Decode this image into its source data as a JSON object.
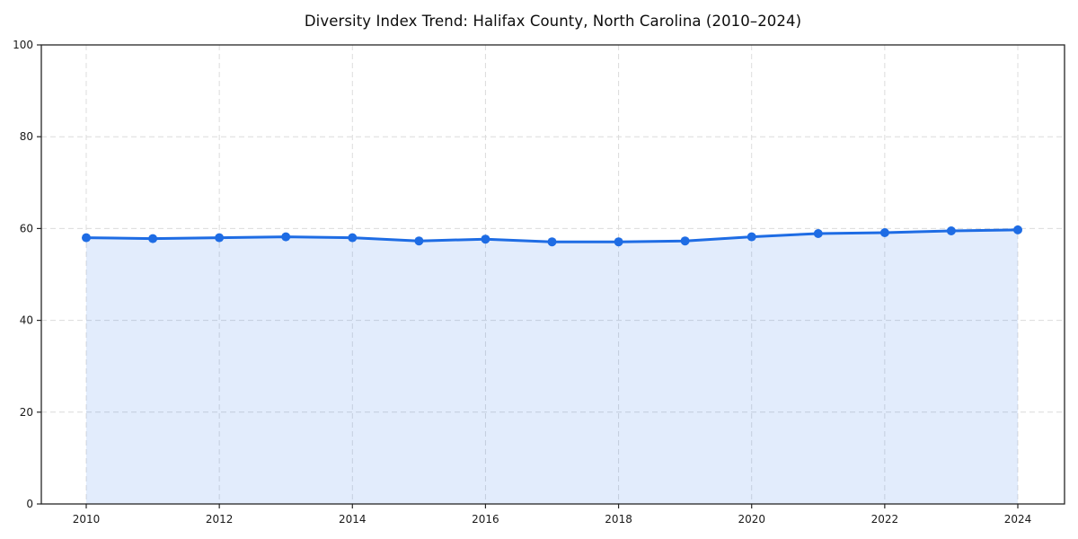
{
  "chart_data": {
    "type": "area",
    "title": "Diversity Index Trend: Halifax County, North Carolina (2010–2024)",
    "x": [
      2010,
      2011,
      2012,
      2013,
      2014,
      2015,
      2016,
      2017,
      2018,
      2019,
      2020,
      2021,
      2022,
      2023,
      2024
    ],
    "values": [
      58.0,
      57.8,
      58.0,
      58.2,
      58.0,
      57.3,
      57.7,
      57.1,
      57.1,
      57.3,
      58.2,
      58.9,
      59.1,
      59.5,
      59.7
    ],
    "xlabel": "",
    "ylabel": "",
    "ylim": [
      0,
      100
    ],
    "yticks": [
      0,
      20,
      40,
      60,
      80,
      100
    ],
    "xticks": [
      2010,
      2012,
      2014,
      2016,
      2018,
      2020,
      2022,
      2024
    ],
    "grid": true,
    "grid_style": "dashed",
    "legend": false,
    "marker": "circle",
    "colors": {
      "line": "#1e6ce4",
      "marker": "#1e6ce4",
      "area_fill": "rgba(30, 108, 228, 0.13)",
      "grid": "#dcdcdc",
      "spine": "#262626",
      "tick_label": "#1a1a1a",
      "title": "#0d0d0d",
      "background": "#ffffff"
    }
  }
}
